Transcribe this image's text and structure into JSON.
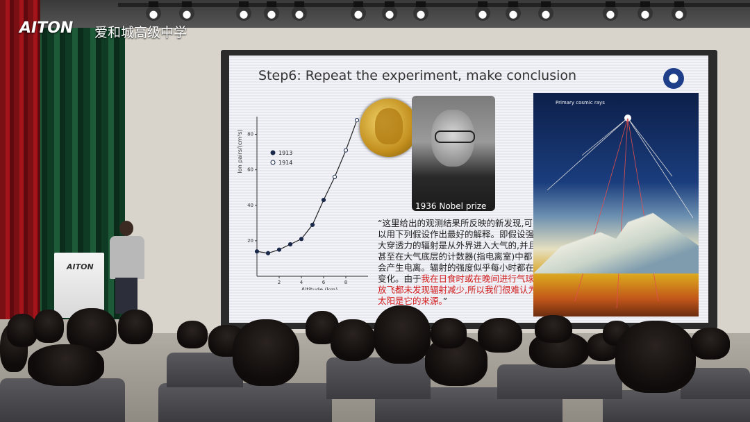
{
  "scene": {
    "logo_text": "AITON",
    "logo_cn": "爱和城高级中学",
    "podium_logo": "AITON"
  },
  "slide": {
    "title": "Step6: Repeat the experiment, make conclusion",
    "portrait_caption": "1936 Nobel prize",
    "quote_black": "“这里给出的观测结果所反映的新发现,可以用下列假设作出最好的解释。即假设强大穿透力的辐射是从外界进入大气的,并且甚至在大气底层的计数器(指电离室)中都会产生电离。辐射的强度似乎每小时都在变化。由于",
    "quote_red": "我在日食时或在晚间进行气球放飞都未发现辐射减少,所以我们很难认为太阳是它的来源。",
    "quote_end": "”",
    "cosmic_label": "Primary cosmic rays"
  },
  "chart_data": {
    "type": "scatter",
    "xlabel": "Altitude (km)",
    "ylabel": "Ion pairs/(cm³s)",
    "xlim": [
      0,
      10
    ],
    "ylim": [
      0,
      90
    ],
    "xticks": [
      2,
      4,
      6,
      8
    ],
    "yticks": [
      20,
      40,
      60,
      80
    ],
    "series": [
      {
        "name": "1913",
        "marker": "filled",
        "x": [
          0,
          1,
          2,
          3,
          4,
          5,
          6
        ],
        "y": [
          14,
          13,
          15,
          18,
          21,
          29,
          43
        ]
      },
      {
        "name": "1914",
        "marker": "open",
        "x": [
          7,
          8,
          9
        ],
        "y": [
          56,
          71,
          88
        ]
      }
    ]
  }
}
